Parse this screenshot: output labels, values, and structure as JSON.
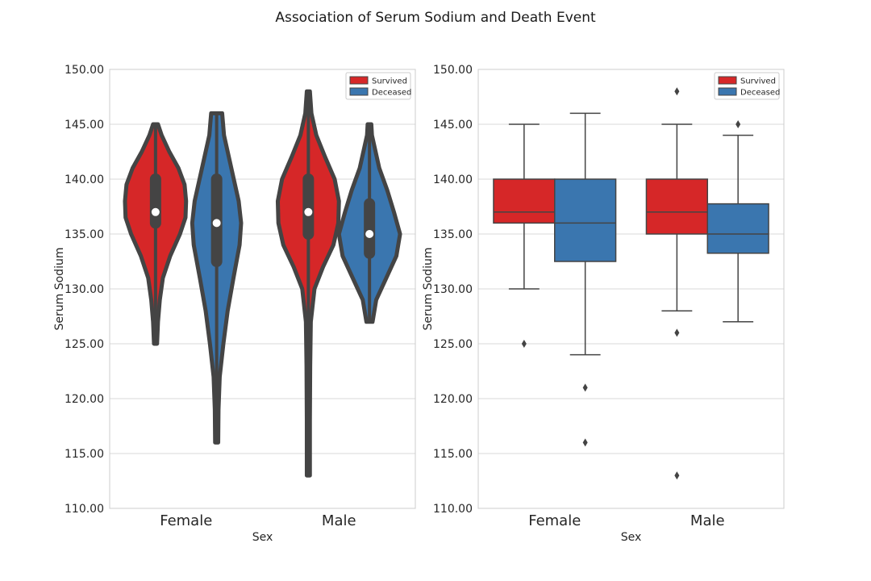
{
  "title": "Association of Serum Sodium and Death Event",
  "chart_data": [
    {
      "type": "violin",
      "xlabel": "Sex",
      "ylabel": "Serum Sodium",
      "ylim": [
        110,
        150
      ],
      "yticks": [
        "110.00",
        "115.00",
        "120.00",
        "125.00",
        "130.00",
        "135.00",
        "140.00",
        "145.00",
        "150.00"
      ],
      "categories": [
        "Female",
        "Male"
      ],
      "legend": {
        "position": "top-right",
        "entries": [
          "Survived",
          "Deceased"
        ]
      },
      "colors": {
        "Survived": "#d62728",
        "Deceased": "#3a76af",
        "outline": "#444444"
      },
      "grid": true,
      "series": [
        {
          "name": "Survived",
          "groups": [
            {
              "category": "Female",
              "min": 125,
              "q1": 136,
              "median": 137,
              "q3": 140,
              "max": 145,
              "density": [
                [
                  125,
                  0.05
                ],
                [
                  127,
                  0.08
                ],
                [
                  129,
                  0.14
                ],
                [
                  131,
                  0.24
                ],
                [
                  133,
                  0.48
                ],
                [
                  135,
                  0.8
                ],
                [
                  136.5,
                  0.98
                ],
                [
                  138,
                  1.0
                ],
                [
                  139.5,
                  0.95
                ],
                [
                  141,
                  0.75
                ],
                [
                  142.5,
                  0.45
                ],
                [
                  144,
                  0.2
                ],
                [
                  145,
                  0.08
                ]
              ]
            },
            {
              "category": "Male",
              "min": 113,
              "q1": 135,
              "median": 137,
              "q3": 140,
              "max": 148,
              "density": [
                [
                  113,
                  0.05
                ],
                [
                  118,
                  0.05
                ],
                [
                  123,
                  0.06
                ],
                [
                  127,
                  0.08
                ],
                [
                  130,
                  0.2
                ],
                [
                  132,
                  0.48
                ],
                [
                  134,
                  0.82
                ],
                [
                  136,
                  0.98
                ],
                [
                  138,
                  1.0
                ],
                [
                  140,
                  0.86
                ],
                [
                  142,
                  0.55
                ],
                [
                  144,
                  0.26
                ],
                [
                  146,
                  0.1
                ],
                [
                  148,
                  0.05
                ]
              ]
            }
          ]
        },
        {
          "name": "Deceased",
          "groups": [
            {
              "category": "Female",
              "min": 116,
              "q1": 132.5,
              "median": 136,
              "q3": 140,
              "max": 146,
              "density": [
                [
                  116,
                  0.05
                ],
                [
                  119,
                  0.06
                ],
                [
                  122,
                  0.1
                ],
                [
                  125,
                  0.22
                ],
                [
                  128,
                  0.36
                ],
                [
                  131,
                  0.55
                ],
                [
                  134,
                  0.75
                ],
                [
                  136,
                  0.8
                ],
                [
                  138,
                  0.72
                ],
                [
                  140,
                  0.56
                ],
                [
                  142,
                  0.4
                ],
                [
                  144,
                  0.24
                ],
                [
                  146,
                  0.18
                ]
              ]
            },
            {
              "category": "Male",
              "min": 127,
              "q1": 133.25,
              "median": 135,
              "q3": 137.75,
              "max": 145,
              "density": [
                [
                  127,
                  0.1
                ],
                [
                  129,
                  0.22
                ],
                [
                  131,
                  0.55
                ],
                [
                  133,
                  0.88
                ],
                [
                  135,
                  1.0
                ],
                [
                  137,
                  0.8
                ],
                [
                  139,
                  0.58
                ],
                [
                  141,
                  0.32
                ],
                [
                  143,
                  0.16
                ],
                [
                  144,
                  0.08
                ],
                [
                  145,
                  0.06
                ]
              ]
            }
          ]
        }
      ]
    },
    {
      "type": "box",
      "xlabel": "Sex",
      "ylabel": "Serum Sodium",
      "ylim": [
        110,
        150
      ],
      "yticks": [
        "110.00",
        "115.00",
        "120.00",
        "125.00",
        "130.00",
        "135.00",
        "140.00",
        "145.00",
        "150.00"
      ],
      "categories": [
        "Female",
        "Male"
      ],
      "legend": {
        "position": "top-right",
        "entries": [
          "Survived",
          "Deceased"
        ]
      },
      "colors": {
        "Survived": "#d62728",
        "Deceased": "#3a76af",
        "outline": "#444444"
      },
      "grid": true,
      "series": [
        {
          "name": "Survived",
          "groups": [
            {
              "category": "Female",
              "whisker_low": 130,
              "q1": 136,
              "median": 137,
              "q3": 140,
              "whisker_high": 145,
              "outliers": [
                125
              ]
            },
            {
              "category": "Male",
              "whisker_low": 128,
              "q1": 135,
              "median": 137,
              "q3": 140,
              "whisker_high": 145,
              "outliers": [
                126,
                113,
                148
              ]
            }
          ]
        },
        {
          "name": "Deceased",
          "groups": [
            {
              "category": "Female",
              "whisker_low": 124,
              "q1": 132.5,
              "median": 136,
              "q3": 140,
              "whisker_high": 146,
              "outliers": [
                121,
                116
              ]
            },
            {
              "category": "Male",
              "whisker_low": 127,
              "q1": 133.25,
              "median": 135,
              "q3": 137.75,
              "whisker_high": 144,
              "outliers": [
                145
              ]
            }
          ]
        }
      ]
    }
  ]
}
